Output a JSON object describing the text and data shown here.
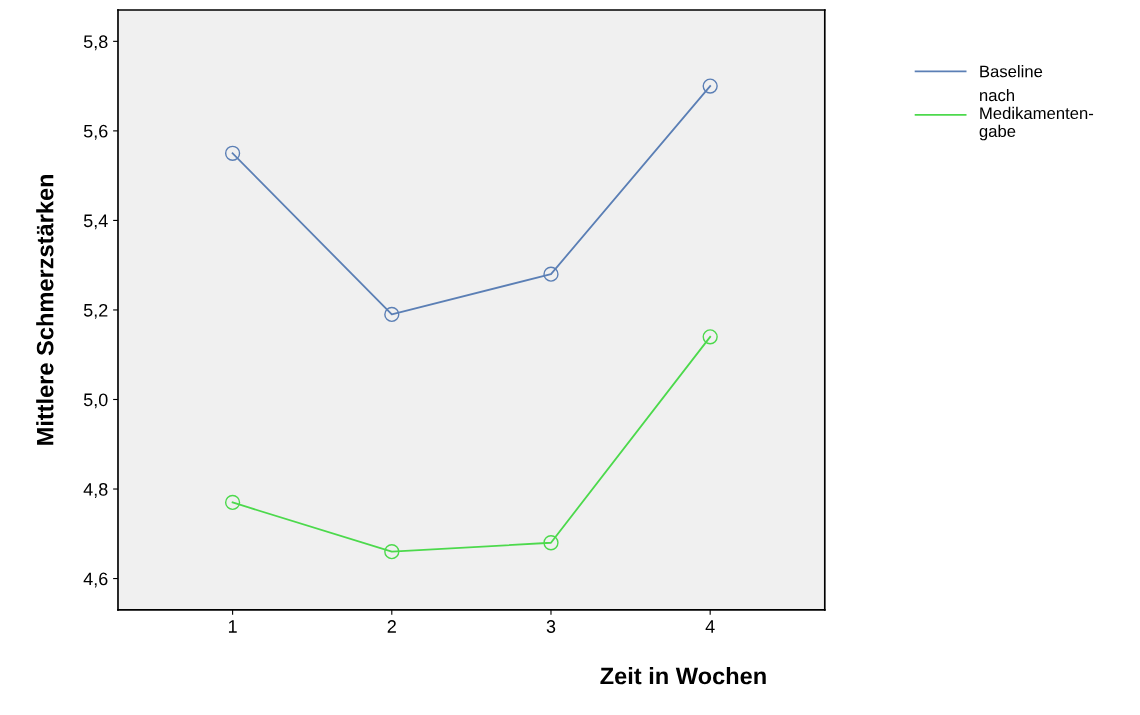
{
  "chart_data": {
    "type": "line",
    "xlabel": "Zeit in Wochen",
    "ylabel": "Mittlere Schmerzstärken",
    "x": [
      1,
      2,
      3,
      4
    ],
    "series": [
      {
        "name": "Baseline",
        "color": "#5b7fb5",
        "values": [
          5.55,
          5.19,
          5.28,
          5.7
        ]
      },
      {
        "name": "nach\nMedikamenten-\ngabe",
        "color": "#4cd94c",
        "values": [
          4.77,
          4.66,
          4.68,
          5.14
        ]
      }
    ],
    "xlim": [
      0.28,
      4.72
    ],
    "xticks": [
      1,
      2,
      3,
      4
    ],
    "ylim": [
      4.53,
      5.87
    ],
    "yticks": [
      {
        "value": 4.6,
        "label": "4,6"
      },
      {
        "value": 4.8,
        "label": "4,8"
      },
      {
        "value": 5.0,
        "label": "5,0"
      },
      {
        "value": 5.2,
        "label": "5,2"
      },
      {
        "value": 5.4,
        "label": "5,4"
      },
      {
        "value": 5.6,
        "label": "5,6"
      },
      {
        "value": 5.8,
        "label": "5,8"
      }
    ],
    "marker": "circle",
    "line_style": "solid",
    "grid": false,
    "legend": "top right"
  }
}
